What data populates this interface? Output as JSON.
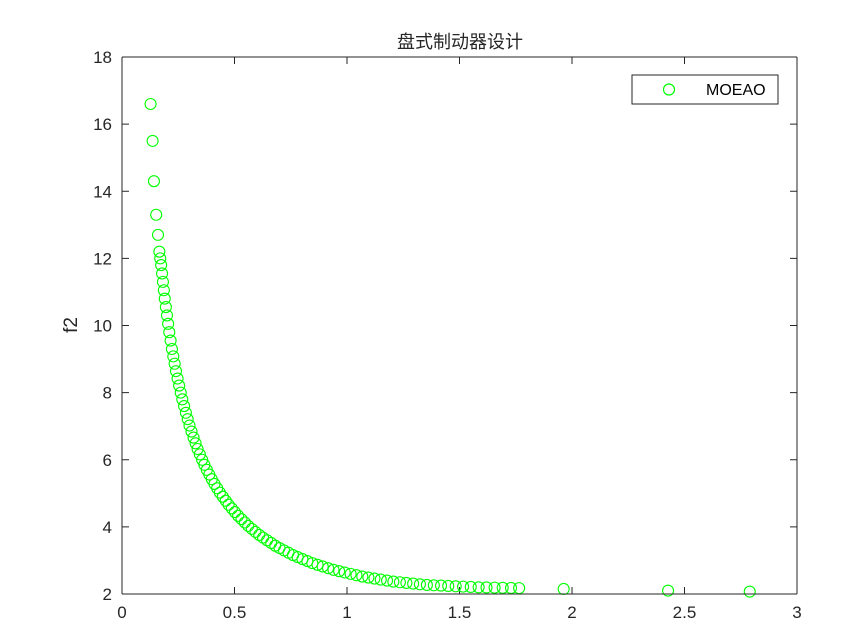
{
  "chart_data": {
    "type": "scatter",
    "title": "盘式制动器设计",
    "xlabel": "",
    "ylabel": "f2",
    "xlim": [
      0,
      3
    ],
    "ylim": [
      2,
      18
    ],
    "xticks": [
      0,
      0.5,
      1,
      1.5,
      2,
      2.5,
      3
    ],
    "yticks": [
      2,
      4,
      6,
      8,
      10,
      12,
      14,
      16,
      18
    ],
    "xtick_labels": [
      "0",
      "0.5",
      "1",
      "1.5",
      "2",
      "2.5",
      "3"
    ],
    "ytick_labels": [
      "2",
      "4",
      "6",
      "8",
      "10",
      "12",
      "14",
      "16",
      "18"
    ],
    "grid": false,
    "legend": {
      "position": "top-right",
      "entries": [
        "MOEAO"
      ]
    },
    "series": [
      {
        "name": "MOEAO",
        "color": "#00ff00",
        "marker": "circle-open",
        "x": [
          0.127,
          0.136,
          0.142,
          0.152,
          0.16,
          0.166,
          0.17,
          0.174,
          0.178,
          0.182,
          0.186,
          0.19,
          0.195,
          0.2,
          0.205,
          0.21,
          0.216,
          0.222,
          0.228,
          0.234,
          0.24,
          0.247,
          0.254,
          0.261,
          0.268,
          0.276,
          0.284,
          0.292,
          0.3,
          0.309,
          0.318,
          0.327,
          0.336,
          0.346,
          0.356,
          0.366,
          0.377,
          0.388,
          0.399,
          0.411,
          0.423,
          0.435,
          0.448,
          0.461,
          0.474,
          0.488,
          0.502,
          0.516,
          0.531,
          0.546,
          0.561,
          0.577,
          0.593,
          0.61,
          0.627,
          0.645,
          0.663,
          0.681,
          0.7,
          0.72,
          0.74,
          0.76,
          0.781,
          0.802,
          0.824,
          0.846,
          0.869,
          0.892,
          0.916,
          0.94,
          0.965,
          0.99,
          1.016,
          1.042,
          1.068,
          1.095,
          1.122,
          1.15,
          1.178,
          1.206,
          1.235,
          1.264,
          1.294,
          1.324,
          1.355,
          1.386,
          1.418,
          1.45,
          1.483,
          1.516,
          1.55,
          1.585,
          1.62,
          1.656,
          1.692,
          1.729,
          1.765,
          1.963,
          2.427,
          2.79
        ],
        "y": [
          16.6,
          15.5,
          14.3,
          13.3,
          12.7,
          12.2,
          12.0,
          11.8,
          11.55,
          11.3,
          11.05,
          10.8,
          10.55,
          10.3,
          10.05,
          9.8,
          9.55,
          9.3,
          9.08,
          8.86,
          8.64,
          8.42,
          8.21,
          8.0,
          7.8,
          7.6,
          7.4,
          7.21,
          7.02,
          6.84,
          6.66,
          6.49,
          6.32,
          6.16,
          6.0,
          5.85,
          5.7,
          5.56,
          5.42,
          5.28,
          5.15,
          5.02,
          4.9,
          4.78,
          4.66,
          4.55,
          4.44,
          4.33,
          4.23,
          4.13,
          4.03,
          3.94,
          3.85,
          3.76,
          3.68,
          3.6,
          3.52,
          3.44,
          3.37,
          3.3,
          3.23,
          3.16,
          3.1,
          3.04,
          2.98,
          2.92,
          2.87,
          2.82,
          2.77,
          2.72,
          2.68,
          2.64,
          2.6,
          2.56,
          2.52,
          2.49,
          2.46,
          2.43,
          2.4,
          2.37,
          2.35,
          2.33,
          2.31,
          2.29,
          2.27,
          2.26,
          2.25,
          2.24,
          2.23,
          2.22,
          2.21,
          2.2,
          2.195,
          2.19,
          2.185,
          2.18,
          2.175,
          2.15,
          2.1,
          2.07
        ]
      }
    ]
  }
}
